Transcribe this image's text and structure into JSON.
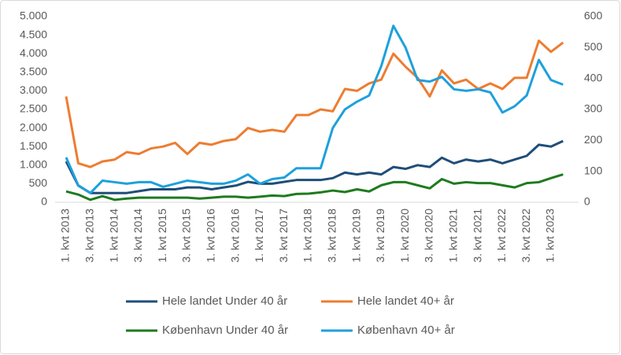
{
  "chart_data": {
    "type": "line",
    "categories": [
      "1. kvt 2013",
      null,
      "3. kvt 2013",
      null,
      "1. kvt 2014",
      null,
      "3. kvt 2014",
      null,
      "1. kvt 2015",
      null,
      "3. kvt 2015",
      null,
      "1. kvt 2016",
      null,
      "3. kvt 2016",
      null,
      "1. kvt 2017",
      null,
      "3. kvt 2017",
      null,
      "1. kvt 2018",
      null,
      "3. kvt 2018",
      null,
      "1. kvt 2019",
      null,
      "3. kvt 2019",
      null,
      "1. kvt 2020",
      null,
      "3. kvt 2020",
      null,
      "1. kvt 2021",
      null,
      "3. kvt 2021",
      null,
      "1. kvt 2022",
      null,
      "3. kvt 2022",
      null,
      "1. kvt 2023",
      null
    ],
    "series": [
      {
        "name": "Hele landet Under 40 år",
        "color": "#1f4e79",
        "values": [
          1100,
          450,
          250,
          250,
          250,
          250,
          300,
          350,
          350,
          350,
          400,
          400,
          350,
          400,
          450,
          550,
          500,
          500,
          550,
          600,
          600,
          600,
          650,
          800,
          750,
          800,
          750,
          950,
          900,
          1000,
          950,
          1200,
          1050,
          1150,
          1100,
          1150,
          1050,
          1150,
          1250,
          1550,
          1500,
          1650
        ]
      },
      {
        "name": "Hele landet 40+ år",
        "color": "#ed7d31",
        "values": [
          2850,
          1050,
          950,
          1100,
          1150,
          1350,
          1300,
          1450,
          1500,
          1600,
          1300,
          1600,
          1550,
          1650,
          1700,
          2000,
          1900,
          1950,
          1900,
          2350,
          2350,
          2500,
          2450,
          3050,
          3000,
          3200,
          3300,
          4000,
          3650,
          3350,
          2850,
          3550,
          3200,
          3300,
          3050,
          3200,
          3050,
          3350,
          3350,
          4350,
          4050,
          4300
        ]
      },
      {
        "name": "København Under 40 år",
        "color": "#1e7b1e",
        "axis": "y2",
        "values": [
          35,
          25,
          8,
          20,
          8,
          12,
          15,
          15,
          15,
          15,
          15,
          12,
          15,
          18,
          18,
          15,
          18,
          22,
          20,
          27,
          28,
          32,
          38,
          33,
          42,
          35,
          55,
          65,
          65,
          55,
          45,
          75,
          60,
          65,
          62,
          62,
          55,
          48,
          62,
          65,
          78,
          90
        ]
      },
      {
        "name": "København 40+ år",
        "color": "#1ea0dc",
        "axis": "y2",
        "values": [
          145,
          55,
          30,
          70,
          65,
          60,
          65,
          65,
          50,
          60,
          70,
          65,
          60,
          60,
          70,
          90,
          60,
          75,
          80,
          110,
          110,
          110,
          240,
          300,
          325,
          345,
          440,
          570,
          500,
          395,
          390,
          405,
          365,
          360,
          365,
          355,
          290,
          310,
          345,
          460,
          395,
          380
        ]
      }
    ],
    "ylim": [
      0,
      5000
    ],
    "yticks": [
      0,
      500,
      {
        "value": 1000,
        "label": "1.000"
      },
      {
        "value": 1500,
        "label": "1.500"
      },
      {
        "value": 2000,
        "label": "2.000"
      },
      {
        "value": 2500,
        "label": "2.500"
      },
      {
        "value": 3000,
        "label": "3.000"
      },
      {
        "value": 3500,
        "label": "3.500"
      },
      {
        "value": 4000,
        "label": "4.000"
      },
      {
        "value": 4500,
        "label": "4.500"
      },
      {
        "value": 5000,
        "label": "5.000"
      }
    ],
    "y2lim": [
      0,
      600
    ],
    "y2ticks": [
      0,
      100,
      200,
      300,
      400,
      500,
      600
    ]
  }
}
